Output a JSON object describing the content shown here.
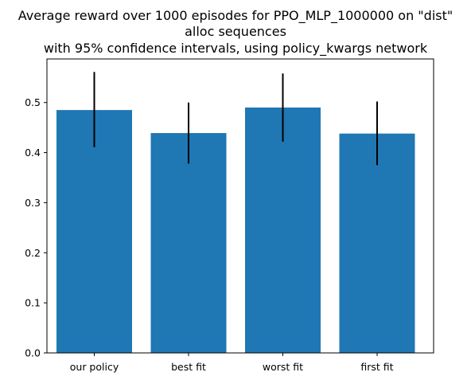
{
  "chart_data": {
    "type": "bar",
    "title_lines": [
      "Average reward over 1000 episodes for PPO_MLP_1000000 on \"dist\"",
      "alloc sequences",
      "with 95% confidence intervals, using policy_kwargs network"
    ],
    "categories": [
      "our policy",
      "best fit",
      "worst fit",
      "first fit"
    ],
    "values": [
      0.485,
      0.439,
      0.49,
      0.438
    ],
    "error_low": [
      0.411,
      0.378,
      0.422,
      0.375
    ],
    "error_high": [
      0.561,
      0.5,
      0.558,
      0.502
    ],
    "yticks": [
      "0.0",
      "0.1",
      "0.2",
      "0.3",
      "0.4",
      "0.5"
    ],
    "ylim": [
      0,
      0.587
    ],
    "xlabel": "",
    "ylabel": "",
    "grid": false,
    "colors": {
      "bar": "#1f77b4",
      "error_bar": "#000000",
      "axes": "#000000",
      "text": "#000000"
    }
  }
}
